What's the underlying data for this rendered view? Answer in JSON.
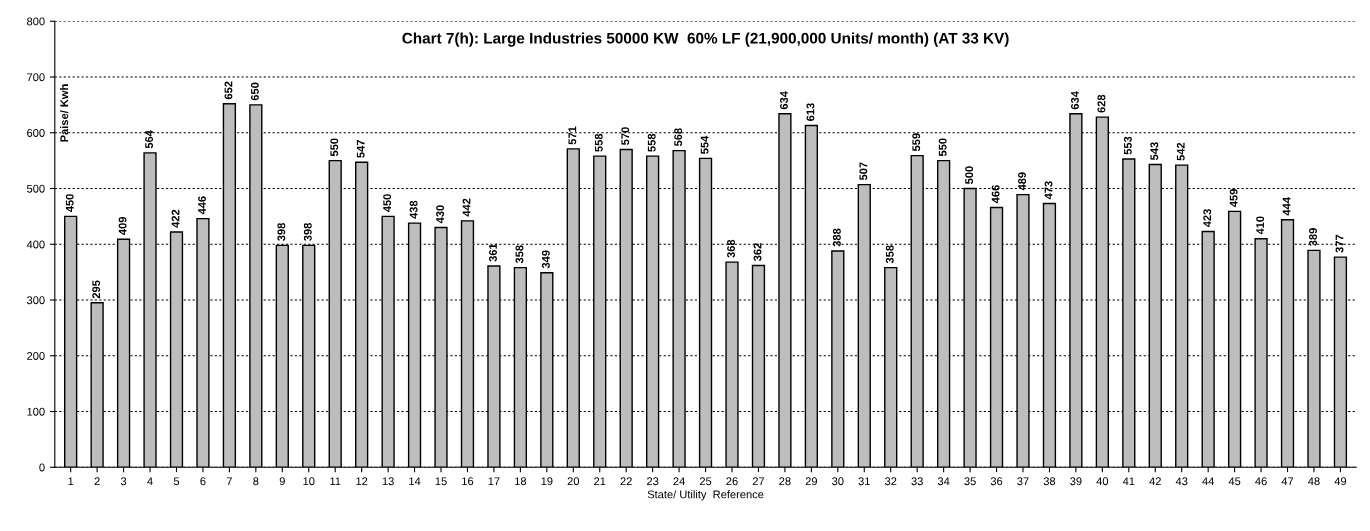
{
  "chart_data": {
    "type": "bar",
    "title": "Chart 7(h): Large Industries 50000 KW  60% LF (21,900,000 Units/ month) (AT 33 KV)",
    "xlabel": "State/ Utility  Reference",
    "ylabel": "Paise/ Kwh",
    "categories": [
      "1",
      "2",
      "3",
      "4",
      "5",
      "6",
      "7",
      "8",
      "9",
      "10",
      "11",
      "12",
      "13",
      "14",
      "15",
      "16",
      "17",
      "18",
      "19",
      "20",
      "21",
      "22",
      "23",
      "24",
      "25",
      "26",
      "27",
      "28",
      "29",
      "30",
      "31",
      "32",
      "33",
      "34",
      "35",
      "36",
      "37",
      "38",
      "39",
      "40",
      "41",
      "42",
      "43",
      "44",
      "45",
      "46",
      "47",
      "48",
      "49"
    ],
    "values": [
      450,
      295,
      409,
      564,
      422,
      446,
      652,
      650,
      398,
      398,
      550,
      547,
      450,
      438,
      430,
      442,
      361,
      358,
      349,
      571,
      558,
      570,
      558,
      568,
      554,
      368,
      362,
      634,
      613,
      388,
      507,
      358,
      559,
      550,
      500,
      466,
      489,
      473,
      634,
      628,
      553,
      543,
      542,
      423,
      459,
      410,
      444,
      389,
      377
    ],
    "color": "#bdbdbd",
    "ylim": [
      0,
      800
    ],
    "yticks": [
      0,
      100,
      200,
      300,
      400,
      500,
      600,
      700,
      800
    ],
    "grid": "y",
    "data_labels": true
  }
}
